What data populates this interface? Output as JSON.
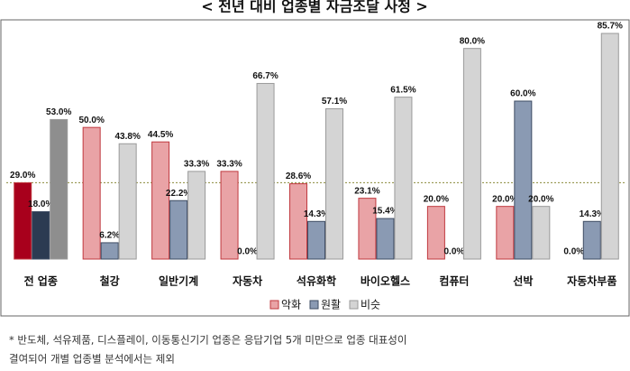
{
  "chart_data": {
    "type": "bar",
    "title": "< 전년 대비 업종별 자금조달 사정 >",
    "categories": [
      "전 업종",
      "철강",
      "일반기계",
      "자동차",
      "석유화학",
      "바이오헬스",
      "컴퓨터",
      "선박",
      "자동차부품"
    ],
    "series": [
      {
        "name": "악화",
        "color": "#e9a3a6",
        "stroke": "#c0393f",
        "colors": [
          "#a8001c",
          "#e9a3a6",
          "#e9a3a6",
          "#e9a3a6",
          "#e9a3a6",
          "#e9a3a6",
          "#e9a3a6",
          "#e9a3a6",
          "#e9a3a6"
        ],
        "values": [
          29.0,
          50.0,
          44.5,
          33.3,
          28.6,
          23.1,
          20.0,
          20.0,
          0.0
        ],
        "value_labels": [
          "29.0%",
          "50.0%",
          "44.5%",
          "33.3%",
          "28.6%",
          "23.1%",
          "20.0%",
          "20.0%",
          "0.0%"
        ]
      },
      {
        "name": "원활",
        "color": "#8a9ab3",
        "stroke": "#3e4c63",
        "colors": [
          "#2c3b52",
          "#8a9ab3",
          "#8a9ab3",
          "#8a9ab3",
          "#8a9ab3",
          "#8a9ab3",
          "#8a9ab3",
          "#8a9ab3",
          "#8a9ab3"
        ],
        "values": [
          18.0,
          6.2,
          22.2,
          0.0,
          14.3,
          15.4,
          0.0,
          60.0,
          14.3
        ],
        "value_labels": [
          "18.0%",
          "6.2%",
          "22.2%",
          "0.0%",
          "14.3%",
          "15.4%",
          "0.0%",
          "60.0%",
          "14.3%"
        ]
      },
      {
        "name": "비슷",
        "color": "#d4d4d4",
        "stroke": "#9a9a9a",
        "colors": [
          "#8e8e8e",
          "#d4d4d4",
          "#d4d4d4",
          "#d4d4d4",
          "#d4d4d4",
          "#d4d4d4",
          "#d4d4d4",
          "#d4d4d4",
          "#d4d4d4"
        ],
        "values": [
          53.0,
          43.8,
          33.3,
          66.7,
          57.1,
          61.5,
          80.0,
          20.0,
          85.7
        ],
        "value_labels": [
          "53.0%",
          "43.8%",
          "33.3%",
          "66.7%",
          "57.1%",
          "61.5%",
          "80.0%",
          "20.0%",
          "85.7%"
        ]
      }
    ],
    "ylim": [
      0,
      90
    ],
    "reference_line": {
      "value": 29.0,
      "color": "#8a8a3a"
    },
    "legend": "bottom",
    "footnote": [
      "* 반도체, 석유제품, 디스플레이, 이동통신기기 업종은 응답기업 5개 미만으로 업종 대표성이",
      "결여되어 개별 업종별 분석에서는 제외"
    ]
  }
}
